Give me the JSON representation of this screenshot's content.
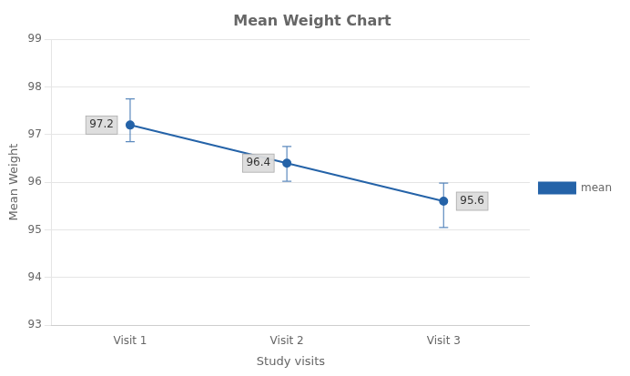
{
  "chart_data": {
    "type": "line",
    "title": "Mean Weight Chart",
    "x_label": "Study visits",
    "y_label": "Mean Weight",
    "x": [
      1,
      2,
      3
    ],
    "xlim": [
      0.5,
      3.55
    ],
    "xticks": [
      {
        "value": 1,
        "label": "Visit 1"
      },
      {
        "value": 2,
        "label": "Visit 2"
      },
      {
        "value": 3,
        "label": "Visit 3"
      }
    ],
    "ylim": [
      93,
      99
    ],
    "yticks": [
      93,
      94,
      95,
      96,
      97,
      98,
      99
    ],
    "series": [
      {
        "name": "mean",
        "color": "#2563A8",
        "marker": "circle",
        "line_style": "solid",
        "values": [
          97.2,
          96.4,
          95.6
        ],
        "error_upper": [
          0.55,
          0.35,
          0.38
        ],
        "error_lower": [
          0.35,
          0.38,
          0.55
        ]
      }
    ],
    "data_labels": true,
    "grid": "y",
    "legend": "right"
  }
}
